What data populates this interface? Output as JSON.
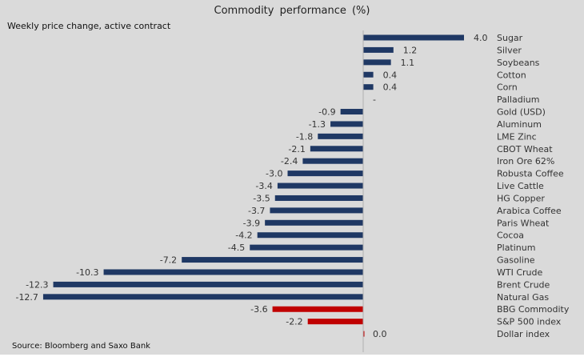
{
  "chart_data": {
    "type": "bar",
    "orientation": "horizontal",
    "title": "Commodity  performance  (%)",
    "subtitle": "Weekly price change, active contract",
    "source": "Source: Bloomberg and Saxo Bank",
    "categories": [
      "Sugar",
      "Silver",
      "Soybeans",
      "Cotton",
      "Corn",
      "Palladium",
      "Gold (USD)",
      "Aluminum",
      "LME Zinc",
      "CBOT Wheat",
      "Iron Ore 62%",
      "Robusta Coffee",
      "Live Cattle",
      "HG Copper",
      "Arabica Coffee",
      "Paris Wheat",
      "Cocoa",
      "Platinum",
      "Gasoline",
      "WTI Crude",
      "Brent Crude",
      "Natural Gas",
      "BBG Commodity",
      "S&P 500 index",
      "Dollar index"
    ],
    "values": [
      4.0,
      1.2,
      1.1,
      0.4,
      0.4,
      null,
      -0.9,
      -1.3,
      -1.8,
      -2.1,
      -2.4,
      -3.0,
      -3.4,
      -3.5,
      -3.7,
      -3.9,
      -4.2,
      -4.5,
      -7.2,
      -10.3,
      -12.3,
      -12.7,
      -3.6,
      -2.2,
      0.0
    ],
    "labels": [
      "4.0",
      "1.2",
      "1.1",
      "0.4",
      "0.4",
      "-",
      "-0.9",
      "-1.3",
      "-1.8",
      "-2.1",
      "-2.4",
      "-3.0",
      "-3.4",
      "-3.5",
      "-3.7",
      "-3.9",
      "-4.2",
      "-4.5",
      "-7.2",
      "-10.3",
      "-12.3",
      "-12.7",
      "-3.6",
      "-2.2",
      "0.0"
    ],
    "highlight": [
      "BBG Commodity",
      "S&P 500 index",
      "Dollar index"
    ],
    "colors": {
      "default": "#1f3864",
      "highlight": "#c00000"
    },
    "xlim": [
      -13.5,
      4.5
    ],
    "grid": false,
    "legend": "none"
  }
}
